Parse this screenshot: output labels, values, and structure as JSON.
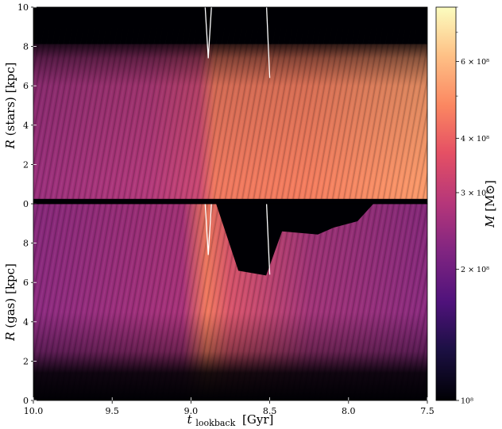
{
  "chart_data": {
    "type": "heatmap",
    "x_axis": {
      "label_main": "t",
      "label_sub": "lookback",
      "label_unit": "[Gyr]",
      "range": [
        10.0,
        7.5
      ],
      "inverted": true,
      "ticks": [
        10.0,
        9.5,
        9.0,
        8.5,
        8.0,
        7.5
      ],
      "tick_labels": [
        "10.0",
        "9.5",
        "9.0",
        "8.5",
        "8.0",
        "7.5"
      ]
    },
    "panels": [
      {
        "name": "stars",
        "ylabel_main": "R",
        "ylabel_rest": "(stars) [kpc]",
        "ylim": [
          0,
          10
        ],
        "yticks": [
          0,
          2,
          4,
          6,
          8,
          10
        ],
        "ytick_labels": [
          "0",
          "2",
          "4",
          "6",
          "8",
          "10"
        ],
        "bright_band_kpc": [
          0.5,
          7.8
        ],
        "transition_gyr": 8.9
      },
      {
        "name": "gas",
        "ylabel_main": "R",
        "ylabel_rest": "(gas) [kpc]",
        "ylim": [
          0,
          10
        ],
        "yticks": [
          0,
          2,
          4,
          6,
          8
        ],
        "ytick_labels": [
          "0",
          "2",
          "4",
          "6",
          "8"
        ],
        "gap_after_gyr": 8.8
      }
    ],
    "overlay_curves": [
      {
        "x": [
          8.91,
          8.89,
          8.87
        ],
        "y_top": [
          10,
          7.4,
          10
        ]
      },
      {
        "x": [
          8.52,
          8.5
        ],
        "y_top": [
          10,
          6.4
        ]
      }
    ],
    "colorbar": {
      "label_main": "M",
      "label_unit": "[M⊙]",
      "scale": "log",
      "range": [
        100000000.0,
        800000000.0
      ],
      "ticks": [
        100000000.0,
        200000000.0,
        300000000.0,
        400000000.0,
        600000000.0
      ],
      "tick_labels": [
        "10⁸",
        "2 × 10⁸",
        "3 × 10⁸",
        "4 × 10⁸",
        "6 × 10⁸"
      ],
      "colormap": "magma"
    },
    "colors": {
      "background": "#000004",
      "low": "#3b0f70",
      "mid": "#b73779",
      "high": "#fc8961",
      "max": "#fcfdbf",
      "curve": "#ffffff"
    }
  }
}
